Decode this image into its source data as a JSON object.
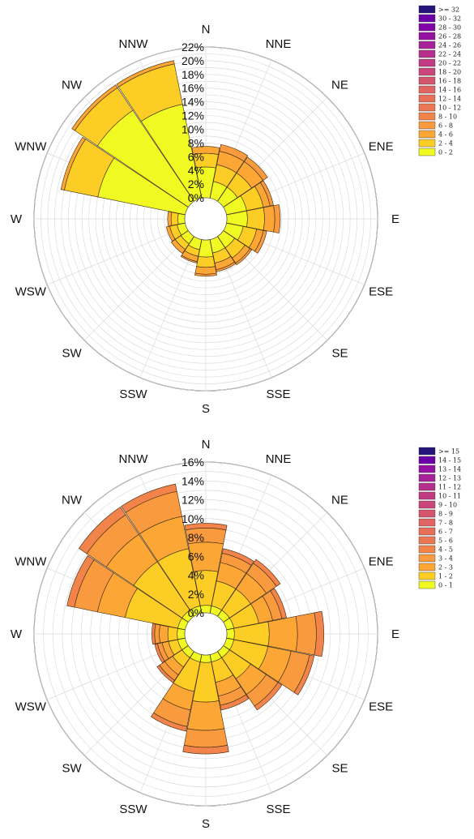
{
  "chart_data": [
    {
      "type": "wind-rose",
      "directions": [
        "N",
        "NNE",
        "NE",
        "ENE",
        "E",
        "ESE",
        "SE",
        "SSE",
        "S",
        "SSW",
        "SW",
        "WSW",
        "W",
        "WNW",
        "NW",
        "NNW"
      ],
      "r_ticks": [
        "0%",
        "2%",
        "4%",
        "6%",
        "8%",
        "10%",
        "12%",
        "14%",
        "16%",
        "18%",
        "20%",
        "22%"
      ],
      "r_max": 22,
      "legend_bins": [
        "0 - 2",
        "2 - 4",
        "4 - 6",
        "6 - 8",
        "8 - 10",
        "10 - 12",
        "12 - 14",
        "14 - 16",
        "16 - 18",
        "18 - 20",
        "20 - 22",
        "22 - 24",
        "24 - 26",
        "26 - 28",
        "28 - 30",
        "30 - 32",
        ">= 32"
      ],
      "colors": [
        "#f0f921",
        "#fcce25",
        "#fca636",
        "#f99a3e",
        "#f2844b",
        "#ec7853",
        "#e76f5a",
        "#e16462",
        "#d5546e",
        "#ca457a",
        "#c13b82",
        "#b52f8c",
        "#a72197",
        "#9511a1",
        "#8004a8",
        "#6a00a8",
        "#24137a"
      ],
      "series_totals": [
        7.5,
        8.0,
        7.8,
        7.0,
        7.8,
        6.0,
        5.0,
        4.8,
        5.3,
        3.5,
        3.0,
        2.8,
        2.5,
        18.5,
        20.5,
        20.5
      ],
      "stacks": [
        [
          4.5,
          6.5,
          7.5
        ],
        [
          2.5,
          5.0,
          7.0,
          8.0
        ],
        [
          2.5,
          5.0,
          7.0,
          7.8
        ],
        [
          3.0,
          5.5,
          6.5,
          7.0
        ],
        [
          3.0,
          5.5,
          7.0,
          7.8
        ],
        [
          2.5,
          4.5,
          5.5,
          6.0
        ],
        [
          2.0,
          3.8,
          4.7,
          5.0
        ],
        [
          2.0,
          3.5,
          4.5,
          4.8
        ],
        [
          2.5,
          4.0,
          5.0,
          5.3
        ],
        [
          1.5,
          2.5,
          3.3,
          3.5
        ],
        [
          1.3,
          2.3,
          3.0
        ],
        [
          1.2,
          2.3,
          2.8
        ],
        [
          1.0,
          2.0,
          2.5
        ],
        [
          13.0,
          18.0,
          18.5
        ],
        [
          16.0,
          20.0,
          20.5
        ],
        [
          14.0,
          20.0,
          20.5
        ]
      ]
    },
    {
      "type": "wind-rose",
      "directions": [
        "N",
        "NNE",
        "NE",
        "ENE",
        "E",
        "ESE",
        "SE",
        "SSE",
        "S",
        "SSW",
        "SW",
        "WSW",
        "W",
        "WNW",
        "NW",
        "NNW"
      ],
      "r_ticks": [
        "0%",
        "2%",
        "4%",
        "6%",
        "8%",
        "10%",
        "12%",
        "14%",
        "16%"
      ],
      "r_max": 16,
      "legend_bins": [
        "0 - 1",
        "1 - 2",
        "2 - 3",
        "3 - 4",
        "4 - 5",
        "5 - 6",
        "6 - 7",
        "7 - 8",
        "8 - 9",
        "9 - 10",
        "10 - 11",
        "11 - 12",
        "12 - 13",
        "13 - 14",
        "14 - 15",
        ">= 15"
      ],
      "colors": [
        "#f0f921",
        "#fcce25",
        "#fca636",
        "#f99a3e",
        "#f2844b",
        "#ec7853",
        "#e76f5a",
        "#e16462",
        "#d5546e",
        "#ca457a",
        "#c13b82",
        "#b52f8c",
        "#a72197",
        "#9511a1",
        "#6a00a8",
        "#24137a"
      ],
      "series_totals": [
        9.5,
        7.0,
        7.3,
        6.5,
        10.3,
        9.5,
        7.5,
        6.0,
        10.5,
        8.3,
        4.0,
        3.3,
        3.5,
        12.8,
        14.0,
        14.0
      ],
      "stacks": [
        [
          0.8,
          4.5,
          7.5,
          9.0,
          9.5
        ],
        [
          0.8,
          3.5,
          5.5,
          6.5,
          7.0
        ],
        [
          0.8,
          3.5,
          5.5,
          6.8,
          7.3
        ],
        [
          0.8,
          3.5,
          5.0,
          6.0,
          6.5
        ],
        [
          0.8,
          4.5,
          7.5,
          9.5,
          10.3
        ],
        [
          0.8,
          4.5,
          7.0,
          9.0,
          9.5
        ],
        [
          0.8,
          3.5,
          5.5,
          7.0,
          7.5
        ],
        [
          0.8,
          3.0,
          4.5,
          5.5,
          6.0
        ],
        [
          0.8,
          5.0,
          8.0,
          9.8,
          10.5
        ],
        [
          0.8,
          4.0,
          6.0,
          7.8,
          8.3
        ],
        [
          0.8,
          2.0,
          3.0,
          3.7,
          4.0
        ],
        [
          0.8,
          1.8,
          2.5,
          3.0,
          3.3
        ],
        [
          0.8,
          1.8,
          2.7,
          3.2,
          3.5
        ],
        [
          0.8,
          6.5,
          9.5,
          12.0,
          12.8
        ],
        [
          0.8,
          7.0,
          10.5,
          13.0,
          14.0
        ],
        [
          0.8,
          7.0,
          10.5,
          13.2,
          14.0
        ]
      ]
    }
  ]
}
